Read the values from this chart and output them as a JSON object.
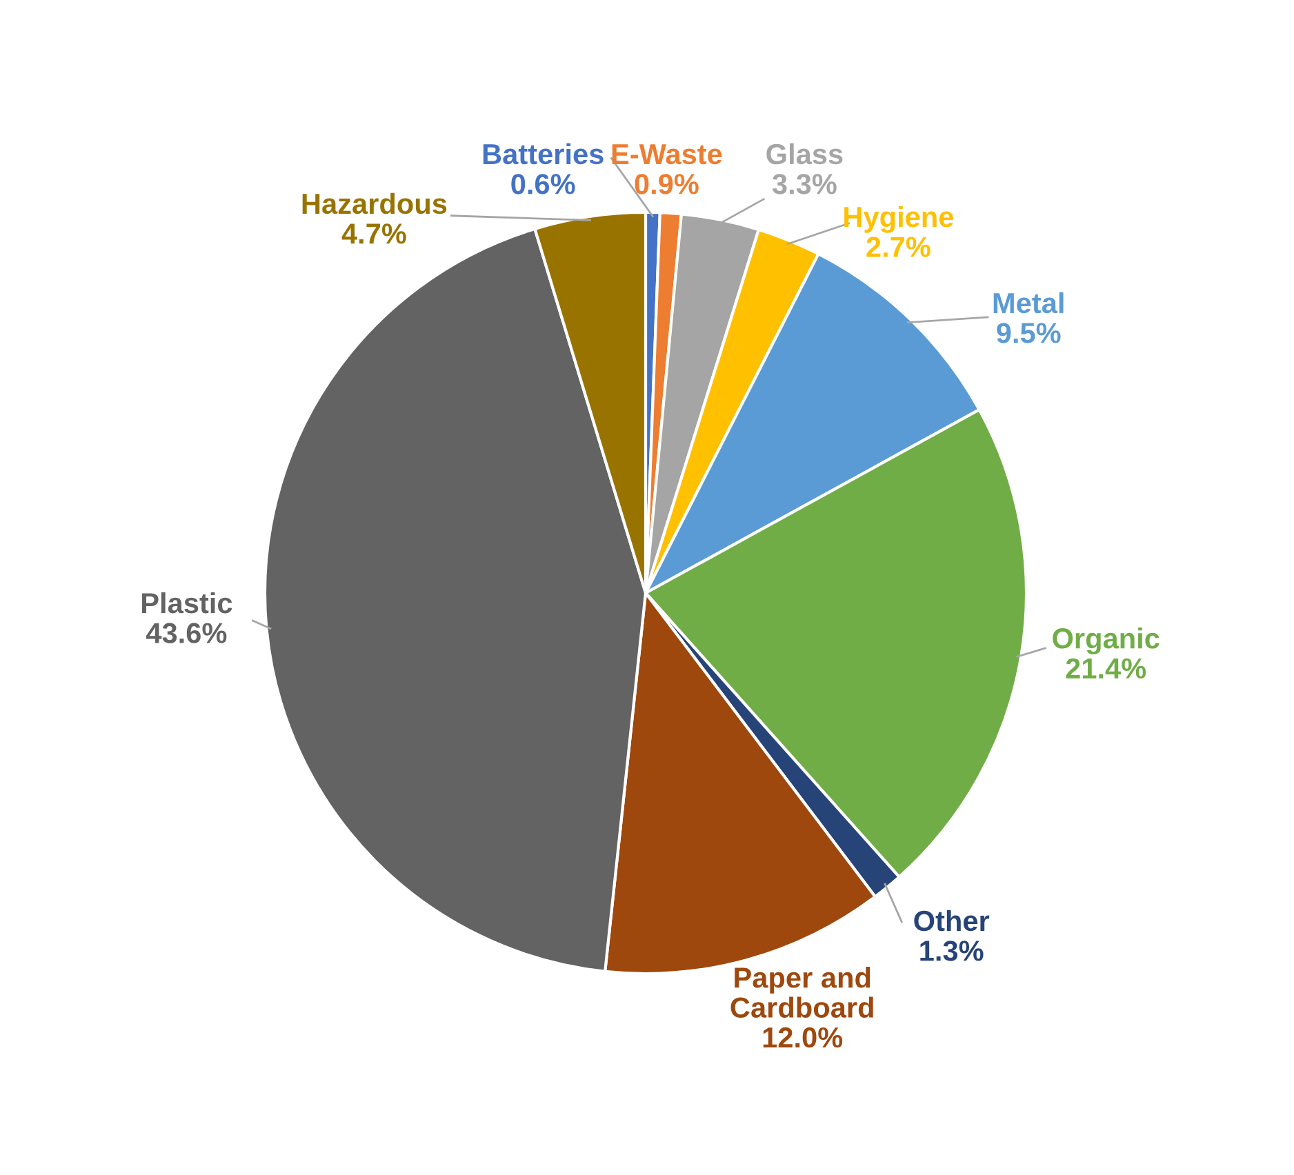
{
  "chart_data": {
    "type": "pie",
    "categories": [
      "Batteries",
      "E-Waste",
      "Glass",
      "Hygiene",
      "Metal",
      "Organic",
      "Other",
      "Paper and Cardboard",
      "Plastic",
      "Hazardous"
    ],
    "values": [
      0.6,
      0.9,
      3.3,
      2.7,
      9.5,
      21.4,
      1.3,
      12.0,
      43.6,
      4.7
    ],
    "colors": [
      "#4472c4",
      "#ed7d31",
      "#a5a5a5",
      "#ffc000",
      "#5b9bd5",
      "#70ad47",
      "#264478",
      "#9e480e",
      "#636363",
      "#997300"
    ],
    "value_labels": [
      "0.6%",
      "0.9%",
      "3.3%",
      "2.7%",
      "9.5%",
      "21.4%",
      "1.3%",
      "12.0%",
      "43.6%",
      "4.7%"
    ]
  }
}
